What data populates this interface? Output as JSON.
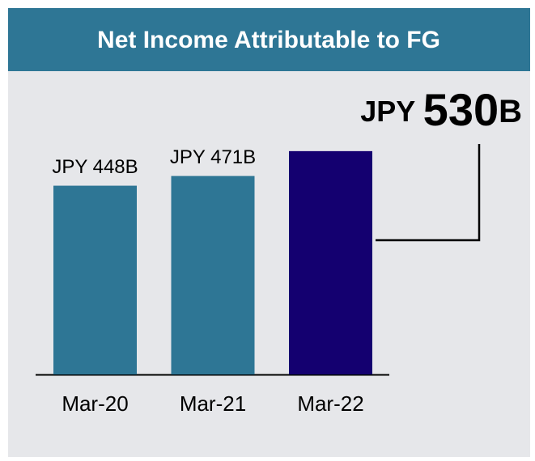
{
  "chart_data": {
    "type": "bar",
    "title": "Net Income Attributable to FG",
    "categories": [
      "Mar-20",
      "Mar-21",
      "Mar-22"
    ],
    "values": [
      448,
      471,
      530
    ],
    "value_labels": [
      "JPY 448B",
      "JPY 471B",
      "JPY 530B"
    ],
    "colors": [
      "#2e7695",
      "#2e7695",
      "#140070"
    ],
    "ylim": [
      0,
      600
    ]
  }
}
